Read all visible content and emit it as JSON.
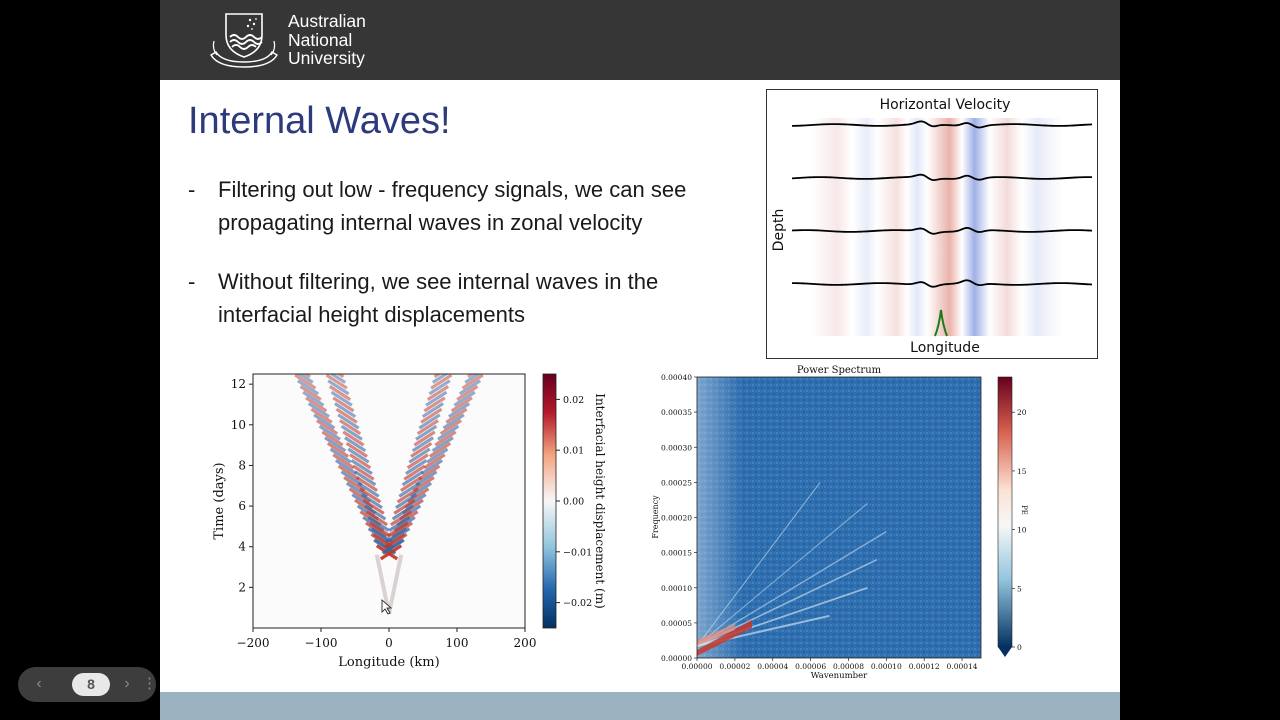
{
  "header": {
    "logo_lines": [
      "Australian",
      "National",
      "University"
    ]
  },
  "slide": {
    "title": "Internal Waves!",
    "bullets": [
      {
        "marker": "-",
        "text": "Filtering out low - frequency signals, we can see propagating internal waves in zonal velocity"
      },
      {
        "marker": "-",
        "text": "Without filtering, we see internal waves in the interfacial height displacements"
      }
    ]
  },
  "nav": {
    "page": "8",
    "prev_icon": "chevron-left-icon",
    "next_icon": "chevron-right-icon",
    "menu_icon": "vertical-dots-icon"
  },
  "chart_data": [
    {
      "type": "heatmap",
      "title": "Horizontal Velocity",
      "xlabel": "Longitude",
      "ylabel": "Depth",
      "layers": 4,
      "colormap": "RdBu_r"
    },
    {
      "type": "heatmap",
      "title": "",
      "xlabel": "Longitude (km)",
      "ylabel": "Time (days)",
      "xlim": [
        -200,
        200
      ],
      "ylim": [
        0,
        12.5
      ],
      "xticks": [
        -200,
        -100,
        0,
        100,
        200
      ],
      "yticks": [
        2,
        4,
        6,
        8,
        10,
        12
      ],
      "colorbar": {
        "label": "Interfacial height displacement (m)",
        "range": [
          -0.025,
          0.025
        ],
        "ticks": [
          "0.02",
          "0.01",
          "0.00",
          "−0.01",
          "−0.02"
        ],
        "colormap": "RdBu_r"
      }
    },
    {
      "type": "heatmap",
      "title": "Power Spectrum",
      "xlabel": "Wavenumber",
      "ylabel": "Frequency",
      "xlim": [
        0,
        0.00015
      ],
      "ylim": [
        0,
        0.0004
      ],
      "xticks": [
        "0.00000",
        "0.00002",
        "0.00004",
        "0.00006",
        "0.00008",
        "0.00010",
        "0.00012",
        "0.00014"
      ],
      "yticks": [
        "0.00000",
        "0.00005",
        "0.00010",
        "0.00015",
        "0.00020",
        "0.00025",
        "0.00030",
        "0.00035",
        "0.00040"
      ],
      "colorbar": {
        "label": "PE",
        "range": [
          0,
          23
        ],
        "ticks": [
          "20",
          "15",
          "10",
          "5",
          "0"
        ],
        "colormap": "RdBu_r"
      }
    }
  ]
}
